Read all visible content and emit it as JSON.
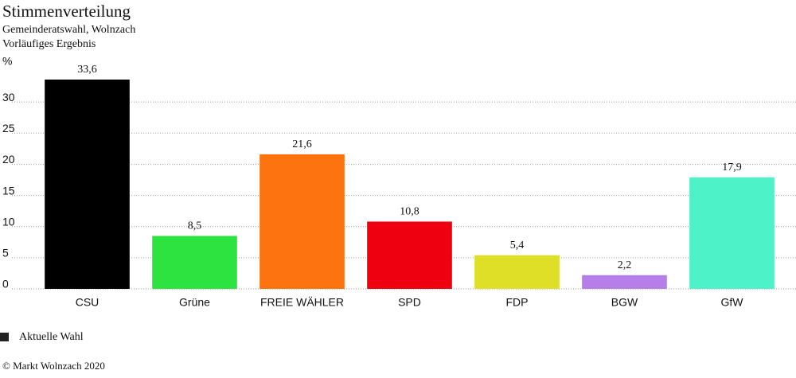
{
  "chart_data": {
    "type": "bar",
    "title": "Stimmenverteilung",
    "subtitle": [
      "Gemeinderatswahl, Wolnzach",
      "Vorläufiges Ergebnis"
    ],
    "y_label": "%",
    "categories": [
      "CSU",
      "Grüne",
      "FREIE WÄHLER",
      "SPD",
      "FDP",
      "BGW",
      "GfW"
    ],
    "series": [
      {
        "name": "Aktuelle Wahl",
        "color": "#222222",
        "colors": [
          "#000000",
          "#2de340",
          "#fc7310",
          "#ee0010",
          "#dfdf28",
          "#b57ee8",
          "#4ef2c8"
        ],
        "values": [
          33.6,
          8.5,
          21.6,
          10.8,
          5.4,
          2.2,
          17.9
        ],
        "value_labels": [
          "33,6",
          "8,5",
          "21,6",
          "10,8",
          "5,4",
          "2,2",
          "17,9"
        ]
      }
    ],
    "ylim": [
      0,
      35
    ],
    "yticks": [
      0,
      5,
      10,
      15,
      20,
      25,
      30
    ],
    "grid": true,
    "legend": "bottom-left",
    "source": "© Markt Wolnzach 2020"
  }
}
